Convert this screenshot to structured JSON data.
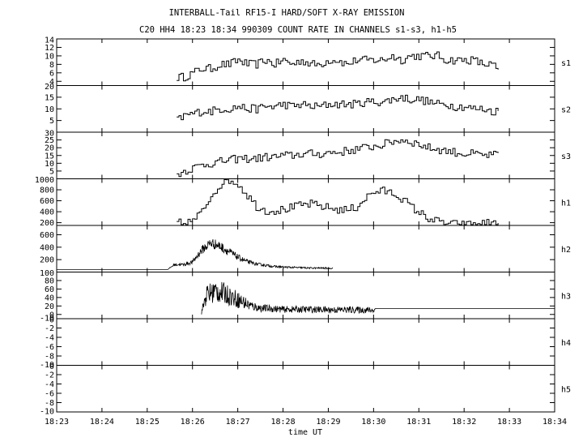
{
  "chart_data": {
    "type": "line",
    "title": "INTERBALL-Tail RF15-I HARD/SOFT X-RAY EMISSION",
    "subtitle": "C20 HH4 18:23 18:34 990309  COUNT RATE IN CHANNELS s1-s3, h1-h5",
    "xlabel": "time UT",
    "x_ticks": [
      "18:23",
      "18:24",
      "18:25",
      "18:26",
      "18:27",
      "18:28",
      "18:29",
      "18:30",
      "18:31",
      "18:32",
      "18:33",
      "18:34"
    ],
    "xlim_minutes": [
      0,
      11
    ],
    "panels": [
      {
        "name": "s1",
        "ylim": [
          3,
          14
        ],
        "yticks": [
          "14",
          "12",
          "10",
          "8",
          "6",
          "4"
        ],
        "style": "step",
        "x": [
          2.65,
          2.8,
          3.0,
          3.2,
          3.4,
          3.6,
          3.8,
          4.0,
          4.2,
          4.4,
          4.6,
          4.8,
          5.0,
          5.2,
          5.4,
          5.6,
          5.8,
          6.0,
          6.2,
          6.4,
          6.6,
          6.8,
          7.0,
          7.2,
          7.4,
          7.6,
          7.8,
          8.0,
          8.2,
          8.4,
          8.6,
          8.8,
          9.0,
          9.2,
          9.4,
          9.6,
          9.8
        ],
        "y": [
          5,
          5,
          6,
          7,
          7,
          8,
          8,
          9,
          8,
          8,
          9,
          8,
          9,
          8,
          9,
          8,
          8,
          9,
          9,
          8,
          9,
          9,
          9,
          9,
          10,
          9,
          10,
          10,
          10,
          10,
          9,
          9,
          9,
          9,
          8,
          8,
          6
        ]
      },
      {
        "name": "s2",
        "ylim": [
          0,
          20
        ],
        "yticks": [
          "20",
          "15",
          "10",
          "5"
        ],
        "style": "step",
        "x": [
          2.65,
          2.8,
          3.0,
          3.2,
          3.4,
          3.6,
          3.8,
          4.0,
          4.2,
          4.4,
          4.6,
          4.8,
          5.0,
          5.2,
          5.4,
          5.6,
          5.8,
          6.0,
          6.2,
          6.4,
          6.6,
          6.8,
          7.0,
          7.2,
          7.4,
          7.6,
          7.8,
          8.0,
          8.2,
          8.4,
          8.6,
          8.8,
          9.0,
          9.2,
          9.4,
          9.6,
          9.8
        ],
        "y": [
          5,
          7,
          8,
          9,
          9,
          10,
          10,
          11,
          10,
          10,
          11,
          11,
          12,
          11,
          12,
          11,
          11,
          12,
          12,
          12,
          12,
          13,
          13,
          13,
          14,
          15,
          14,
          14,
          13,
          12,
          12,
          11,
          11,
          10,
          10,
          9,
          9
        ]
      },
      {
        "name": "s3",
        "ylim": [
          0,
          30
        ],
        "yticks": [
          "30",
          "25",
          "20",
          "15",
          "10",
          "5"
        ],
        "style": "step",
        "x": [
          2.65,
          2.8,
          3.0,
          3.2,
          3.4,
          3.6,
          3.8,
          4.0,
          4.2,
          4.4,
          4.6,
          4.8,
          5.0,
          5.2,
          5.4,
          5.6,
          5.8,
          6.0,
          6.2,
          6.4,
          6.6,
          6.8,
          7.0,
          7.2,
          7.4,
          7.6,
          7.8,
          8.0,
          8.2,
          8.4,
          8.6,
          8.8,
          9.0,
          9.2,
          9.4,
          9.6,
          9.8
        ],
        "y": [
          3,
          5,
          7,
          9,
          10,
          11,
          12,
          13,
          13,
          13,
          14,
          14,
          15,
          15,
          16,
          16,
          16,
          17,
          17,
          18,
          19,
          20,
          21,
          22,
          24,
          25,
          24,
          22,
          20,
          19,
          18,
          17,
          16,
          16,
          15,
          15,
          16
        ]
      },
      {
        "name": "h1",
        "ylim": [
          150,
          1000
        ],
        "yticks": [
          "1000",
          "800",
          "600",
          "400",
          "200"
        ],
        "style": "step",
        "x": [
          2.65,
          2.8,
          3.0,
          3.2,
          3.4,
          3.6,
          3.8,
          4.0,
          4.2,
          4.4,
          4.6,
          4.8,
          5.0,
          5.2,
          5.4,
          5.6,
          5.8,
          6.0,
          6.2,
          6.4,
          6.6,
          6.8,
          7.0,
          7.2,
          7.4,
          7.6,
          7.8,
          8.0,
          8.2,
          8.4,
          8.6,
          8.8,
          9.0,
          9.2,
          9.4,
          9.6,
          9.8
        ],
        "y": [
          200,
          180,
          240,
          400,
          700,
          900,
          980,
          900,
          700,
          500,
          420,
          420,
          440,
          480,
          520,
          540,
          500,
          470,
          440,
          430,
          480,
          650,
          760,
          780,
          740,
          650,
          500,
          380,
          280,
          220,
          190,
          170,
          160,
          170,
          190,
          200,
          240
        ]
      },
      {
        "name": "h2",
        "ylim": [
          0,
          750
        ],
        "yticks": [
          "600",
          "400",
          "200"
        ],
        "style": "noisy",
        "x": [
          0,
          2.45,
          2.6,
          2.8,
          3.0,
          3.2,
          3.4,
          3.6,
          3.8,
          4.0,
          4.2,
          4.4,
          4.6,
          4.8,
          5.0,
          5.2,
          5.4,
          5.6,
          5.8,
          6.1
        ],
        "y": [
          40,
          40,
          120,
          120,
          160,
          350,
          470,
          420,
          330,
          240,
          170,
          130,
          110,
          90,
          80,
          75,
          70,
          65,
          65,
          60
        ],
        "noise": [
          0,
          0,
          20,
          25,
          35,
          70,
          90,
          80,
          70,
          50,
          35,
          25,
          20,
          18,
          16,
          15,
          14,
          12,
          12,
          12
        ]
      },
      {
        "name": "h3",
        "ylim": [
          -10,
          100
        ],
        "yticks": [
          "100",
          "80",
          "60",
          "40",
          "20",
          "0",
          "-10"
        ],
        "style": "noisy",
        "x": [
          3.2,
          3.3,
          3.5,
          3.7,
          3.9,
          4.1,
          4.3,
          4.5,
          5.0,
          5.5,
          6.0,
          6.5,
          7.0,
          7.05,
          11.0
        ],
        "y": [
          5,
          45,
          55,
          50,
          40,
          30,
          20,
          15,
          12,
          12,
          11,
          11,
          10,
          14,
          14
        ],
        "noise": [
          5,
          25,
          28,
          25,
          22,
          18,
          12,
          9,
          8,
          8,
          8,
          8,
          8,
          0,
          0
        ]
      },
      {
        "name": "h4",
        "ylim": [
          -10,
          0
        ],
        "yticks": [
          "0",
          "-2",
          "-4",
          "-6",
          "-8",
          "-10"
        ],
        "style": "empty",
        "x": [],
        "y": []
      },
      {
        "name": "h5",
        "ylim": [
          -10,
          0
        ],
        "yticks": [
          "0",
          "-2",
          "-4",
          "-6",
          "-8",
          "-10"
        ],
        "style": "empty",
        "x": [],
        "y": []
      }
    ]
  }
}
